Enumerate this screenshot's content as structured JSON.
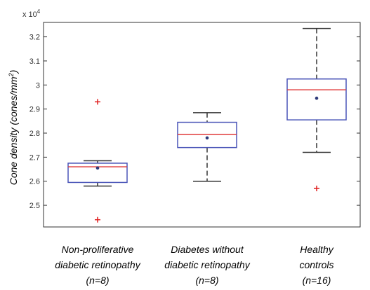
{
  "chart_data": {
    "type": "box",
    "ylabel": "Cone density (cones/mm",
    "ylabel_sup": "2",
    "ylabel_end": ")",
    "y_multiplier": "x 10",
    "y_multiplier_exp": "4",
    "ylim": [
      2.41,
      3.26
    ],
    "yticks": [
      2.5,
      2.6,
      2.7,
      2.8,
      2.9,
      3.0,
      3.1,
      3.2
    ],
    "ytick_labels": [
      "2.5",
      "2.6",
      "2.7",
      "2.8",
      "2.9",
      "3",
      "3.1",
      "3.2"
    ],
    "grid": false,
    "colors": {
      "box": "#4a55b8",
      "median": "#e03a3a",
      "whisker": "#333333",
      "mean": "#2e3a7a",
      "outlier": "#e02020",
      "axis": "#333333"
    },
    "categories": [
      {
        "label_lines": [
          "Non-proliferative",
          "diabetic retinopathy",
          "(n=8)"
        ],
        "whisker_low": 2.58,
        "q1": 2.595,
        "median": 2.66,
        "q3": 2.675,
        "whisker_high": 2.685,
        "mean": 2.655,
        "outliers": [
          2.93,
          2.44
        ]
      },
      {
        "label_lines": [
          "Diabetes without",
          "diabetic retinopathy",
          "(n=8)"
        ],
        "whisker_low": 2.6,
        "q1": 2.74,
        "median": 2.795,
        "q3": 2.845,
        "whisker_high": 2.885,
        "mean": 2.78,
        "outliers": []
      },
      {
        "label_lines": [
          "Healthy",
          "controls",
          "(n=16)"
        ],
        "whisker_low": 2.72,
        "q1": 2.855,
        "median": 2.98,
        "q3": 3.025,
        "whisker_high": 3.235,
        "mean": 2.945,
        "outliers": [
          2.57
        ]
      }
    ]
  }
}
